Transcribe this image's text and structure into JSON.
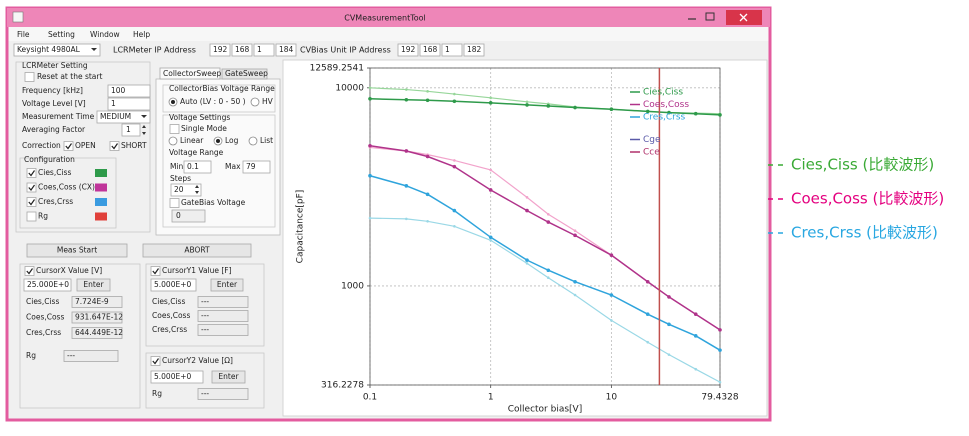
{
  "window": {
    "title": "CVMeasurementTool"
  },
  "menu": [
    "File",
    "Setting",
    "Window",
    "Help"
  ],
  "toolbar": {
    "instrument": "Keysight 4980AL",
    "lcr_ip_label": "LCRMeter IP Address",
    "lcr_ip": [
      "192",
      "168",
      "1",
      "184"
    ],
    "bias_ip_label": "CVBias Unit IP Address",
    "bias_ip": [
      "192",
      "168",
      "1",
      "182"
    ]
  },
  "lcr_setting": {
    "title": "LCRMeter Setting",
    "reset": "Reset at the start",
    "fields": [
      [
        "Frequency [kHz]",
        "100"
      ],
      [
        "Voltage Level [V]",
        "1"
      ],
      [
        "Measurement Time",
        "MEDIUM"
      ],
      [
        "Averaging Factor",
        "1"
      ]
    ],
    "correction": "Correction",
    "open": "OPEN",
    "short": "SHORT",
    "configuration": "Configuration",
    "config_items": [
      "Cies,Ciss",
      "Coes,Coss (CX)",
      "Cres,Crss",
      "Rg"
    ],
    "config_colors": [
      "#2e9a4a",
      "#c0359a",
      "#3a9be0",
      "#e0403a"
    ]
  },
  "sweep": {
    "tabs": [
      "CollectorSweep",
      "GateSweep"
    ],
    "bias_range_title": "CollectorBias Voltage Range",
    "auto": "Auto (LV : 0 - 50 )",
    "hv": "HV",
    "voltage_settings": "Voltage Settings",
    "single_mode": "Single Mode",
    "modes": [
      "Linear",
      "Log",
      "List"
    ],
    "voltage_range": "Voltage Range",
    "min_label": "Min",
    "min": "0.1",
    "max_label": "Max",
    "max": "79",
    "steps_label": "Steps",
    "steps": "20",
    "gate_bias": "GateBias Voltage",
    "gate_bias_value": "0"
  },
  "buttons": {
    "start": "Meas Start",
    "abort": "ABORT"
  },
  "cursor_x": {
    "label": "CursorX Value [V]",
    "value": "25.000E+0",
    "enter": "Enter",
    "rows": [
      [
        "Cies,Ciss",
        "7.724E-9"
      ],
      [
        "Coes,Coss",
        "931.647E-12"
      ],
      [
        "Cres,Crss",
        "644.449E-12"
      ],
      [
        "Rg",
        "---"
      ]
    ]
  },
  "cursor_y1": {
    "label": "CursorY1 Value [F]",
    "value": "5.000E+0",
    "enter": "Enter",
    "rows": [
      [
        "Cies,Ciss",
        "---"
      ],
      [
        "Coes,Coss",
        "---"
      ],
      [
        "Cres,Crss",
        "---"
      ]
    ]
  },
  "cursor_y2": {
    "label": "CursorY2 Value [Ω]",
    "value": "5.000E+0",
    "enter": "Enter",
    "rows": [
      [
        "Rg",
        "---"
      ]
    ]
  },
  "chart_data": {
    "type": "line",
    "x_label": "Collector bias[V]",
    "y_label": "Capacitance[pF]",
    "log_x": true,
    "log_y": true,
    "grid": true,
    "xlim": [
      0.1,
      79.4328
    ],
    "ylim": [
      316.2278,
      12589.2541
    ],
    "xticks": [
      0.1,
      1,
      10,
      79.4328
    ],
    "yticks": [
      316.2278,
      1000,
      10000,
      12589.2541
    ],
    "cursor_x": 25,
    "cursor_color": "#c0504d",
    "x": [
      0.1,
      0.2,
      0.3,
      0.5,
      1,
      2,
      3,
      5,
      10,
      20,
      30,
      50,
      79.4328
    ],
    "series": [
      {
        "name": "Cies,Ciss",
        "color": "#2e9a4a",
        "values": [
          8800,
          8700,
          8650,
          8550,
          8400,
          8200,
          8100,
          7950,
          7800,
          7600,
          7500,
          7400,
          7300
        ]
      },
      {
        "name": "Coes,Coss",
        "color": "#b0338a",
        "values": [
          5100,
          4800,
          4500,
          4000,
          3050,
          2400,
          2100,
          1800,
          1430,
          1050,
          880,
          720,
          600
        ]
      },
      {
        "name": "Cres,Crss",
        "color": "#2fa4dc",
        "values": [
          3600,
          3200,
          2900,
          2400,
          1760,
          1350,
          1200,
          1050,
          900,
          720,
          640,
          560,
          474
        ]
      },
      {
        "name": "Cge",
        "color": "#5a5aa8",
        "values": [
          null,
          null,
          null,
          null,
          null,
          null,
          null,
          null,
          null,
          null,
          null,
          null,
          null
        ]
      },
      {
        "name": "Cce",
        "color": "#b0306a",
        "values": [
          null,
          null,
          null,
          null,
          null,
          null,
          null,
          null,
          null,
          null,
          null,
          null,
          null
        ]
      },
      {
        "name": "Cies,Ciss (比較波形)",
        "color": "#97d69a",
        "label_color": "#3aaa35",
        "line_style": "dashed",
        "values": [
          10000,
          9800,
          9600,
          9300,
          8900,
          8500,
          8300,
          8000,
          7800,
          7600,
          7500,
          7450,
          7400
        ]
      },
      {
        "name": "Coes,Coss (比較波形)",
        "color": "#f2a3cb",
        "label_color": "#e4007f",
        "line_style": "dashed",
        "values": [
          5000,
          4800,
          4600,
          4300,
          3850,
          2800,
          2300,
          1900,
          1430,
          1050,
          880,
          720,
          600
        ]
      },
      {
        "name": "Cres,Crss (比較波形)",
        "color": "#9ad8e6",
        "label_color": "#29a7e1",
        "line_style": "dashed",
        "values": [
          2200,
          2180,
          2120,
          2000,
          1700,
          1300,
          1100,
          900,
          670,
          520,
          450,
          380,
          327
        ]
      }
    ]
  }
}
